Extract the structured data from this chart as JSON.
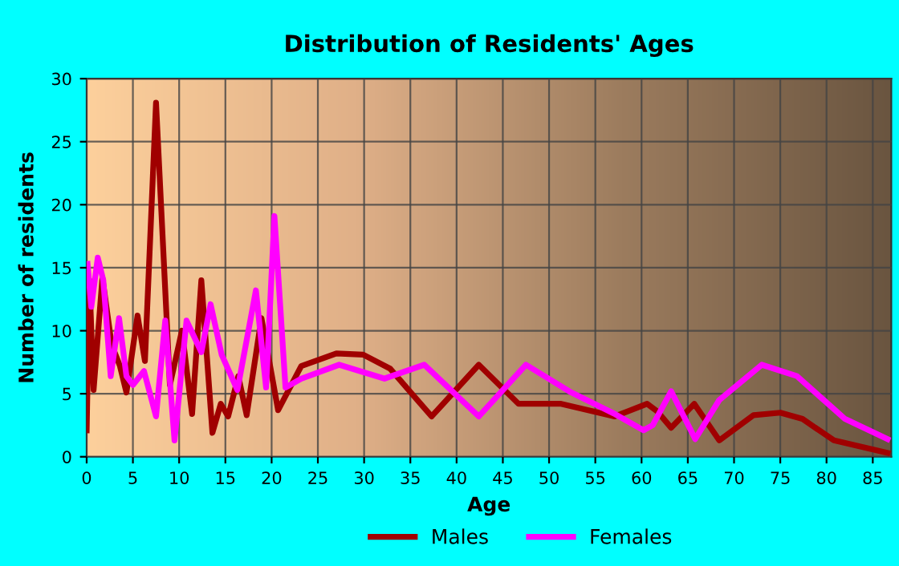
{
  "chart_data": {
    "type": "line",
    "title": "Distribution of Residents' Ages",
    "xlabel": "Age",
    "ylabel": "Number of residents",
    "xlim": [
      0,
      87
    ],
    "ylim": [
      0,
      30
    ],
    "xticks": [
      0,
      5,
      10,
      15,
      20,
      25,
      30,
      35,
      40,
      45,
      50,
      55,
      60,
      65,
      70,
      75,
      80,
      85
    ],
    "yticks": [
      0,
      5,
      10,
      15,
      20,
      25,
      30
    ],
    "grid": true,
    "legend": "bottom",
    "marker": "none",
    "line_style": "solid",
    "series": [
      {
        "name": "Males",
        "color": "#a00000",
        "x": [
          0,
          0.3,
          0.75,
          1.7,
          2.7,
          3.6,
          4.3,
          5.5,
          6.3,
          7.5,
          9.0,
          10.3,
          11.4,
          12.4,
          13.6,
          14.5,
          15.3,
          16.4,
          17.3,
          18.9,
          20.7,
          23.2,
          27,
          29.9,
          32.8,
          37.3,
          42.4,
          46.7,
          51.3,
          57.1,
          60.6,
          61.7,
          63.2,
          65.7,
          68.4,
          72.1,
          75,
          77.4,
          80.8,
          86.6
        ],
        "values": [
          2.1,
          14,
          5.3,
          14.2,
          8.9,
          7.2,
          5.1,
          11.2,
          7.6,
          28.1,
          5.7,
          10,
          3.4,
          14,
          1.9,
          4.2,
          3.2,
          6.4,
          3.3,
          11,
          3.7,
          7.2,
          8.2,
          8.1,
          7.0,
          3.2,
          7.3,
          4.2,
          4.2,
          3.2,
          4.2,
          3.6,
          2.3,
          4.2,
          1.3,
          3.3,
          3.5,
          3.0,
          1.3,
          0.3
        ]
      },
      {
        "name": "Females",
        "color": "#ff00ff",
        "x": [
          0.1,
          0.5,
          1.2,
          1.8,
          2.6,
          3.5,
          4.3,
          5.0,
          6.2,
          7.5,
          8.5,
          9.5,
          10.8,
          12.4,
          13.4,
          14.6,
          16.3,
          18.3,
          19.4,
          20.3,
          21.5,
          23.2,
          27.3,
          32.2,
          36.5,
          42.4,
          47.5,
          52.4,
          57.1,
          60.2,
          61.2,
          63.2,
          65.8,
          68.4,
          73,
          76.8,
          82,
          86.6
        ],
        "values": [
          15.3,
          11.9,
          15.8,
          14,
          6.4,
          11,
          6.4,
          5.7,
          6.8,
          3.2,
          10.8,
          1.3,
          10.8,
          8.3,
          12.1,
          8.1,
          5.3,
          13.2,
          5.5,
          19.1,
          5.5,
          6.2,
          7.3,
          6.2,
          7.3,
          3.2,
          7.3,
          5.1,
          3.4,
          2.1,
          2.5,
          5.2,
          1.4,
          4.5,
          7.3,
          6.4,
          3.0,
          1.4
        ]
      }
    ]
  }
}
